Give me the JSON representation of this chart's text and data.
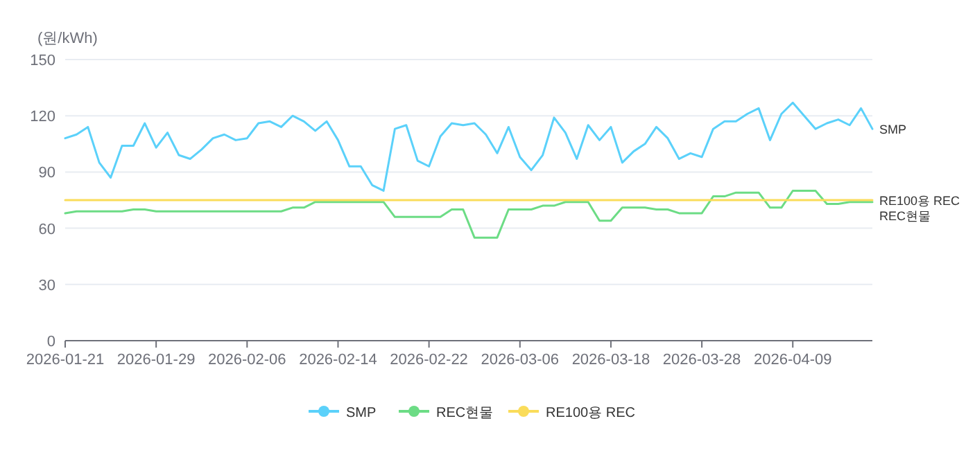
{
  "chart_data": {
    "type": "line",
    "ylabel": "(원/kWh)",
    "categories": [
      "2026-01-21",
      null,
      null,
      null,
      null,
      null,
      null,
      null,
      "2026-01-29",
      null,
      null,
      null,
      null,
      null,
      null,
      null,
      "2026-02-06",
      null,
      null,
      null,
      null,
      null,
      null,
      null,
      "2026-02-14",
      null,
      null,
      null,
      null,
      null,
      null,
      null,
      "2026-02-22",
      null,
      null,
      null,
      null,
      null,
      null,
      null,
      "2026-03-06",
      null,
      null,
      null,
      null,
      null,
      null,
      null,
      "2026-03-18",
      null,
      null,
      null,
      null,
      null,
      null,
      null,
      "2026-03-28",
      null,
      null,
      null,
      null,
      null,
      null,
      null,
      "2026-04-09",
      null,
      null,
      null,
      null,
      null,
      null,
      null
    ],
    "series": [
      {
        "name": "SMP",
        "color": "#5bd1fa",
        "values": [
          108,
          110,
          114,
          95,
          87,
          104,
          104,
          116,
          103,
          111,
          99,
          97,
          102,
          108,
          110,
          107,
          108,
          116,
          117,
          114,
          120,
          117,
          112,
          117,
          107,
          93,
          93,
          83,
          80,
          113,
          115,
          96,
          93,
          109,
          116,
          115,
          116,
          110,
          100,
          114,
          98,
          91,
          99,
          119,
          111,
          97,
          115,
          107,
          114,
          95,
          101,
          105,
          114,
          108,
          97,
          100,
          98,
          113,
          117,
          117,
          121,
          124,
          107,
          121,
          127,
          120,
          113,
          116,
          118,
          115,
          124,
          113
        ]
      },
      {
        "name": "REC현물",
        "color": "#6cdc85",
        "values": [
          68,
          69,
          69,
          69,
          69,
          69,
          70,
          70,
          69,
          69,
          69,
          69,
          69,
          69,
          69,
          69,
          69,
          69,
          69,
          69,
          71,
          71,
          74,
          74,
          74,
          74,
          74,
          74,
          74,
          66,
          66,
          66,
          66,
          66,
          70,
          70,
          55,
          55,
          55,
          70,
          70,
          70,
          72,
          72,
          74,
          74,
          74,
          64,
          64,
          71,
          71,
          71,
          70,
          70,
          68,
          68,
          68,
          77,
          77,
          79,
          79,
          79,
          71,
          71,
          80,
          80,
          80,
          73,
          73,
          74,
          74,
          74
        ]
      },
      {
        "name": "RE100용 REC",
        "color": "#fadc5a",
        "values": [
          75,
          75,
          75,
          75,
          75,
          75,
          75,
          75,
          75,
          75,
          75,
          75,
          75,
          75,
          75,
          75,
          75,
          75,
          75,
          75,
          75,
          75,
          75,
          75,
          75,
          75,
          75,
          75,
          75,
          75,
          75,
          75,
          75,
          75,
          75,
          75,
          75,
          75,
          75,
          75,
          75,
          75,
          75,
          75,
          75,
          75,
          75,
          75,
          75,
          75,
          75,
          75,
          75,
          75,
          75,
          75,
          75,
          75,
          75,
          75,
          75,
          75,
          75,
          75,
          75,
          75,
          75,
          75,
          75,
          75,
          75,
          75
        ]
      }
    ],
    "ylim": [
      0,
      150
    ],
    "yticks": [
      0,
      30,
      60,
      90,
      120,
      150
    ],
    "grid": "y",
    "legend": "bottom",
    "marker": "none",
    "line_style": "solid"
  }
}
